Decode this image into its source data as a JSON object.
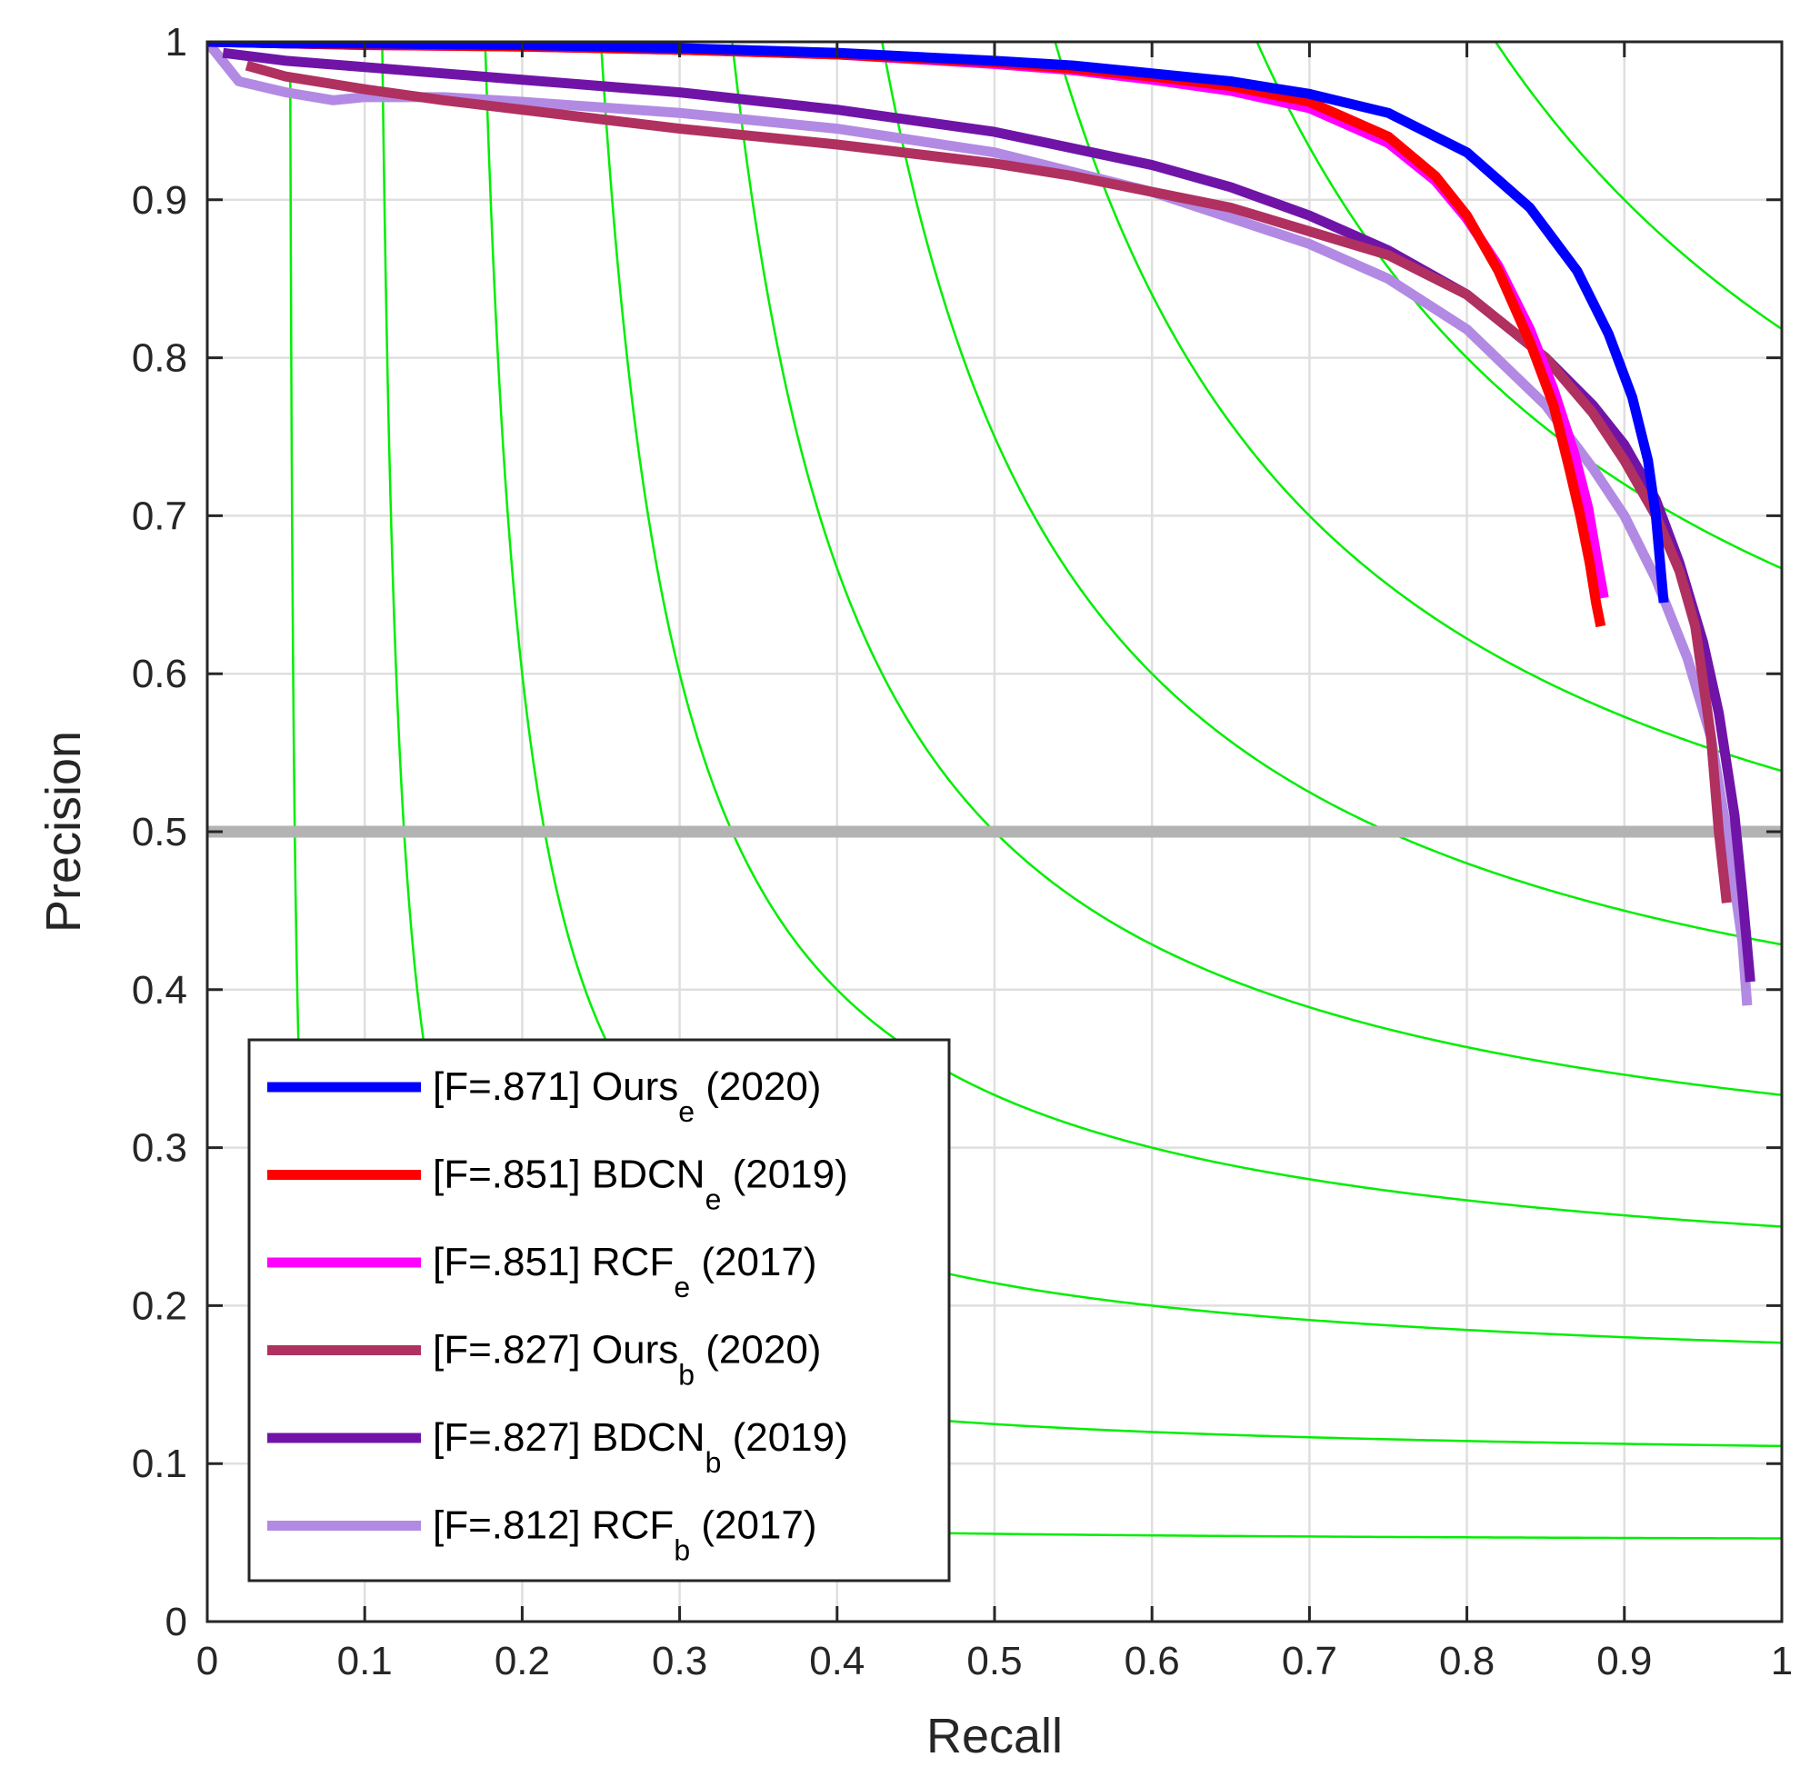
{
  "chart_data": {
    "type": "line",
    "title": "",
    "xlabel": "Recall",
    "ylabel": "Precision",
    "xlim": [
      0,
      1
    ],
    "ylim": [
      0,
      1
    ],
    "grid": true,
    "xticks": [
      "0",
      "0.1",
      "0.2",
      "0.3",
      "0.4",
      "0.5",
      "0.6",
      "0.7",
      "0.8",
      "0.9",
      "1"
    ],
    "yticks": [
      "0",
      "0.1",
      "0.2",
      "0.3",
      "0.4",
      "0.5",
      "0.6",
      "0.7",
      "0.8",
      "0.9",
      "1"
    ],
    "iso_f_lines": {
      "color": "#00ee00",
      "levels": [
        0.1,
        0.2,
        0.3,
        0.4,
        0.5,
        0.6,
        0.7,
        0.8,
        0.9
      ]
    },
    "reference_line": {
      "y": 0.5,
      "color": "#b3b3b3"
    },
    "legend_position": "bottom-left",
    "series": [
      {
        "name": "Ours_e",
        "label_prefix": "[F=.871] Ours",
        "label_sub": "e",
        "label_suffix": " (2020)",
        "color": "#0000ff",
        "x": [
          0.0,
          0.05,
          0.1,
          0.2,
          0.3,
          0.4,
          0.5,
          0.55,
          0.6,
          0.65,
          0.7,
          0.75,
          0.8,
          0.84,
          0.87,
          0.89,
          0.905,
          0.915,
          0.92,
          0.925
        ],
        "y": [
          1.0,
          0.999,
          0.999,
          0.998,
          0.996,
          0.993,
          0.988,
          0.985,
          0.98,
          0.975,
          0.967,
          0.955,
          0.93,
          0.895,
          0.855,
          0.815,
          0.775,
          0.735,
          0.7,
          0.645
        ]
      },
      {
        "name": "BDCN_e",
        "label_prefix": "[F=.851] BDCN",
        "label_sub": "e",
        "label_suffix": " (2019)",
        "color": "#ff0000",
        "x": [
          0.0,
          0.05,
          0.1,
          0.2,
          0.3,
          0.4,
          0.5,
          0.55,
          0.6,
          0.65,
          0.7,
          0.75,
          0.78,
          0.8,
          0.82,
          0.84,
          0.855,
          0.865,
          0.872,
          0.878,
          0.882,
          0.885
        ],
        "y": [
          1.0,
          0.999,
          0.998,
          0.997,
          0.995,
          0.992,
          0.987,
          0.983,
          0.978,
          0.972,
          0.962,
          0.94,
          0.915,
          0.89,
          0.855,
          0.81,
          0.77,
          0.73,
          0.7,
          0.67,
          0.645,
          0.63
        ]
      },
      {
        "name": "RCF_e",
        "label_prefix": "[F=.851] RCF",
        "label_sub": "e",
        "label_suffix": " (2017)",
        "color": "#ff00ff",
        "x": [
          0.0,
          0.05,
          0.1,
          0.2,
          0.3,
          0.4,
          0.5,
          0.55,
          0.6,
          0.65,
          0.7,
          0.75,
          0.78,
          0.8,
          0.82,
          0.84,
          0.855,
          0.868,
          0.877,
          0.883,
          0.887
        ],
        "y": [
          1.0,
          0.999,
          0.998,
          0.997,
          0.995,
          0.992,
          0.986,
          0.982,
          0.976,
          0.969,
          0.958,
          0.936,
          0.912,
          0.888,
          0.858,
          0.818,
          0.78,
          0.74,
          0.705,
          0.67,
          0.648
        ]
      },
      {
        "name": "Ours_b",
        "label_prefix": "[F=.827] Ours",
        "label_sub": "b",
        "label_suffix": " (2020)",
        "color": "#b03060",
        "x": [
          0.025,
          0.05,
          0.1,
          0.15,
          0.2,
          0.3,
          0.4,
          0.5,
          0.55,
          0.6,
          0.65,
          0.7,
          0.75,
          0.8,
          0.85,
          0.88,
          0.9,
          0.92,
          0.935,
          0.945,
          0.955,
          0.96,
          0.965
        ],
        "y": [
          0.985,
          0.978,
          0.97,
          0.963,
          0.957,
          0.945,
          0.935,
          0.923,
          0.915,
          0.905,
          0.895,
          0.88,
          0.865,
          0.84,
          0.8,
          0.765,
          0.735,
          0.7,
          0.665,
          0.63,
          0.56,
          0.5,
          0.455
        ]
      },
      {
        "name": "BDCN_b",
        "label_prefix": "[F=.827] BDCN",
        "label_sub": "b",
        "label_suffix": " (2019)",
        "color": "#7014a8",
        "x": [
          0.01,
          0.05,
          0.1,
          0.2,
          0.3,
          0.4,
          0.5,
          0.6,
          0.65,
          0.7,
          0.75,
          0.8,
          0.85,
          0.88,
          0.9,
          0.92,
          0.935,
          0.95,
          0.96,
          0.97,
          0.975,
          0.98
        ],
        "y": [
          0.993,
          0.988,
          0.984,
          0.976,
          0.968,
          0.957,
          0.943,
          0.922,
          0.908,
          0.89,
          0.868,
          0.84,
          0.8,
          0.77,
          0.745,
          0.71,
          0.67,
          0.62,
          0.575,
          0.51,
          0.46,
          0.405
        ]
      },
      {
        "name": "RCF_b",
        "label_prefix": "[F=.812] RCF",
        "label_sub": "b",
        "label_suffix": " (2017)",
        "color": "#b28ae3",
        "x": [
          0.0,
          0.02,
          0.05,
          0.08,
          0.1,
          0.15,
          0.2,
          0.3,
          0.4,
          0.5,
          0.6,
          0.7,
          0.75,
          0.8,
          0.85,
          0.88,
          0.9,
          0.92,
          0.94,
          0.955,
          0.965,
          0.975,
          0.978
        ],
        "y": [
          1.0,
          0.975,
          0.968,
          0.963,
          0.965,
          0.965,
          0.962,
          0.955,
          0.945,
          0.93,
          0.905,
          0.872,
          0.85,
          0.818,
          0.77,
          0.73,
          0.7,
          0.66,
          0.61,
          0.56,
          0.5,
          0.43,
          0.39
        ]
      }
    ]
  }
}
